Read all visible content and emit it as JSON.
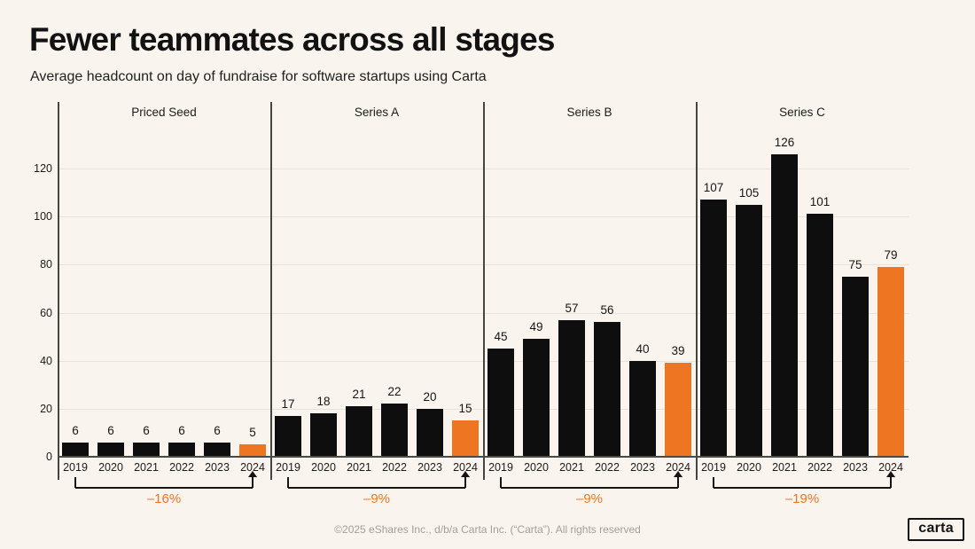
{
  "header": {
    "title": "Fewer teammates across all stages",
    "subtitle": "Average headcount on day of fundraise for software startups using Carta"
  },
  "footer": {
    "copyright": "©2025 eShares Inc., d/b/a Carta Inc. (“Carta”). All rights reserved",
    "logo_label": "carta"
  },
  "chart_data": {
    "type": "bar",
    "title": "Fewer teammates across all stages",
    "subtitle": "Average headcount on day of fundraise for software startups using Carta",
    "categories": [
      "2019",
      "2020",
      "2021",
      "2022",
      "2023",
      "2024"
    ],
    "panels": [
      {
        "label": "Priced Seed",
        "values": [
          6,
          6,
          6,
          6,
          6,
          5
        ],
        "change_label": "–16%"
      },
      {
        "label": "Series A",
        "values": [
          17,
          18,
          21,
          22,
          20,
          15
        ],
        "change_label": "–9%"
      },
      {
        "label": "Series B",
        "values": [
          45,
          49,
          57,
          56,
          40,
          39
        ],
        "change_label": "–9%"
      },
      {
        "label": "Series C",
        "values": [
          107,
          105,
          126,
          101,
          75,
          79
        ],
        "change_label": "–19%"
      }
    ],
    "y_ticks": [
      0,
      20,
      40,
      60,
      80,
      100,
      120
    ],
    "ylim": [
      0,
      148
    ],
    "grid": true,
    "legend": false,
    "highlight_category": "2024",
    "colors": {
      "bar": "#0E0E0E",
      "highlight": "#EE7623",
      "percent_label": "#EE7623",
      "background": "#F9F5EE",
      "gridline": "#E8E3DA",
      "axis": "#4B4A45"
    }
  }
}
